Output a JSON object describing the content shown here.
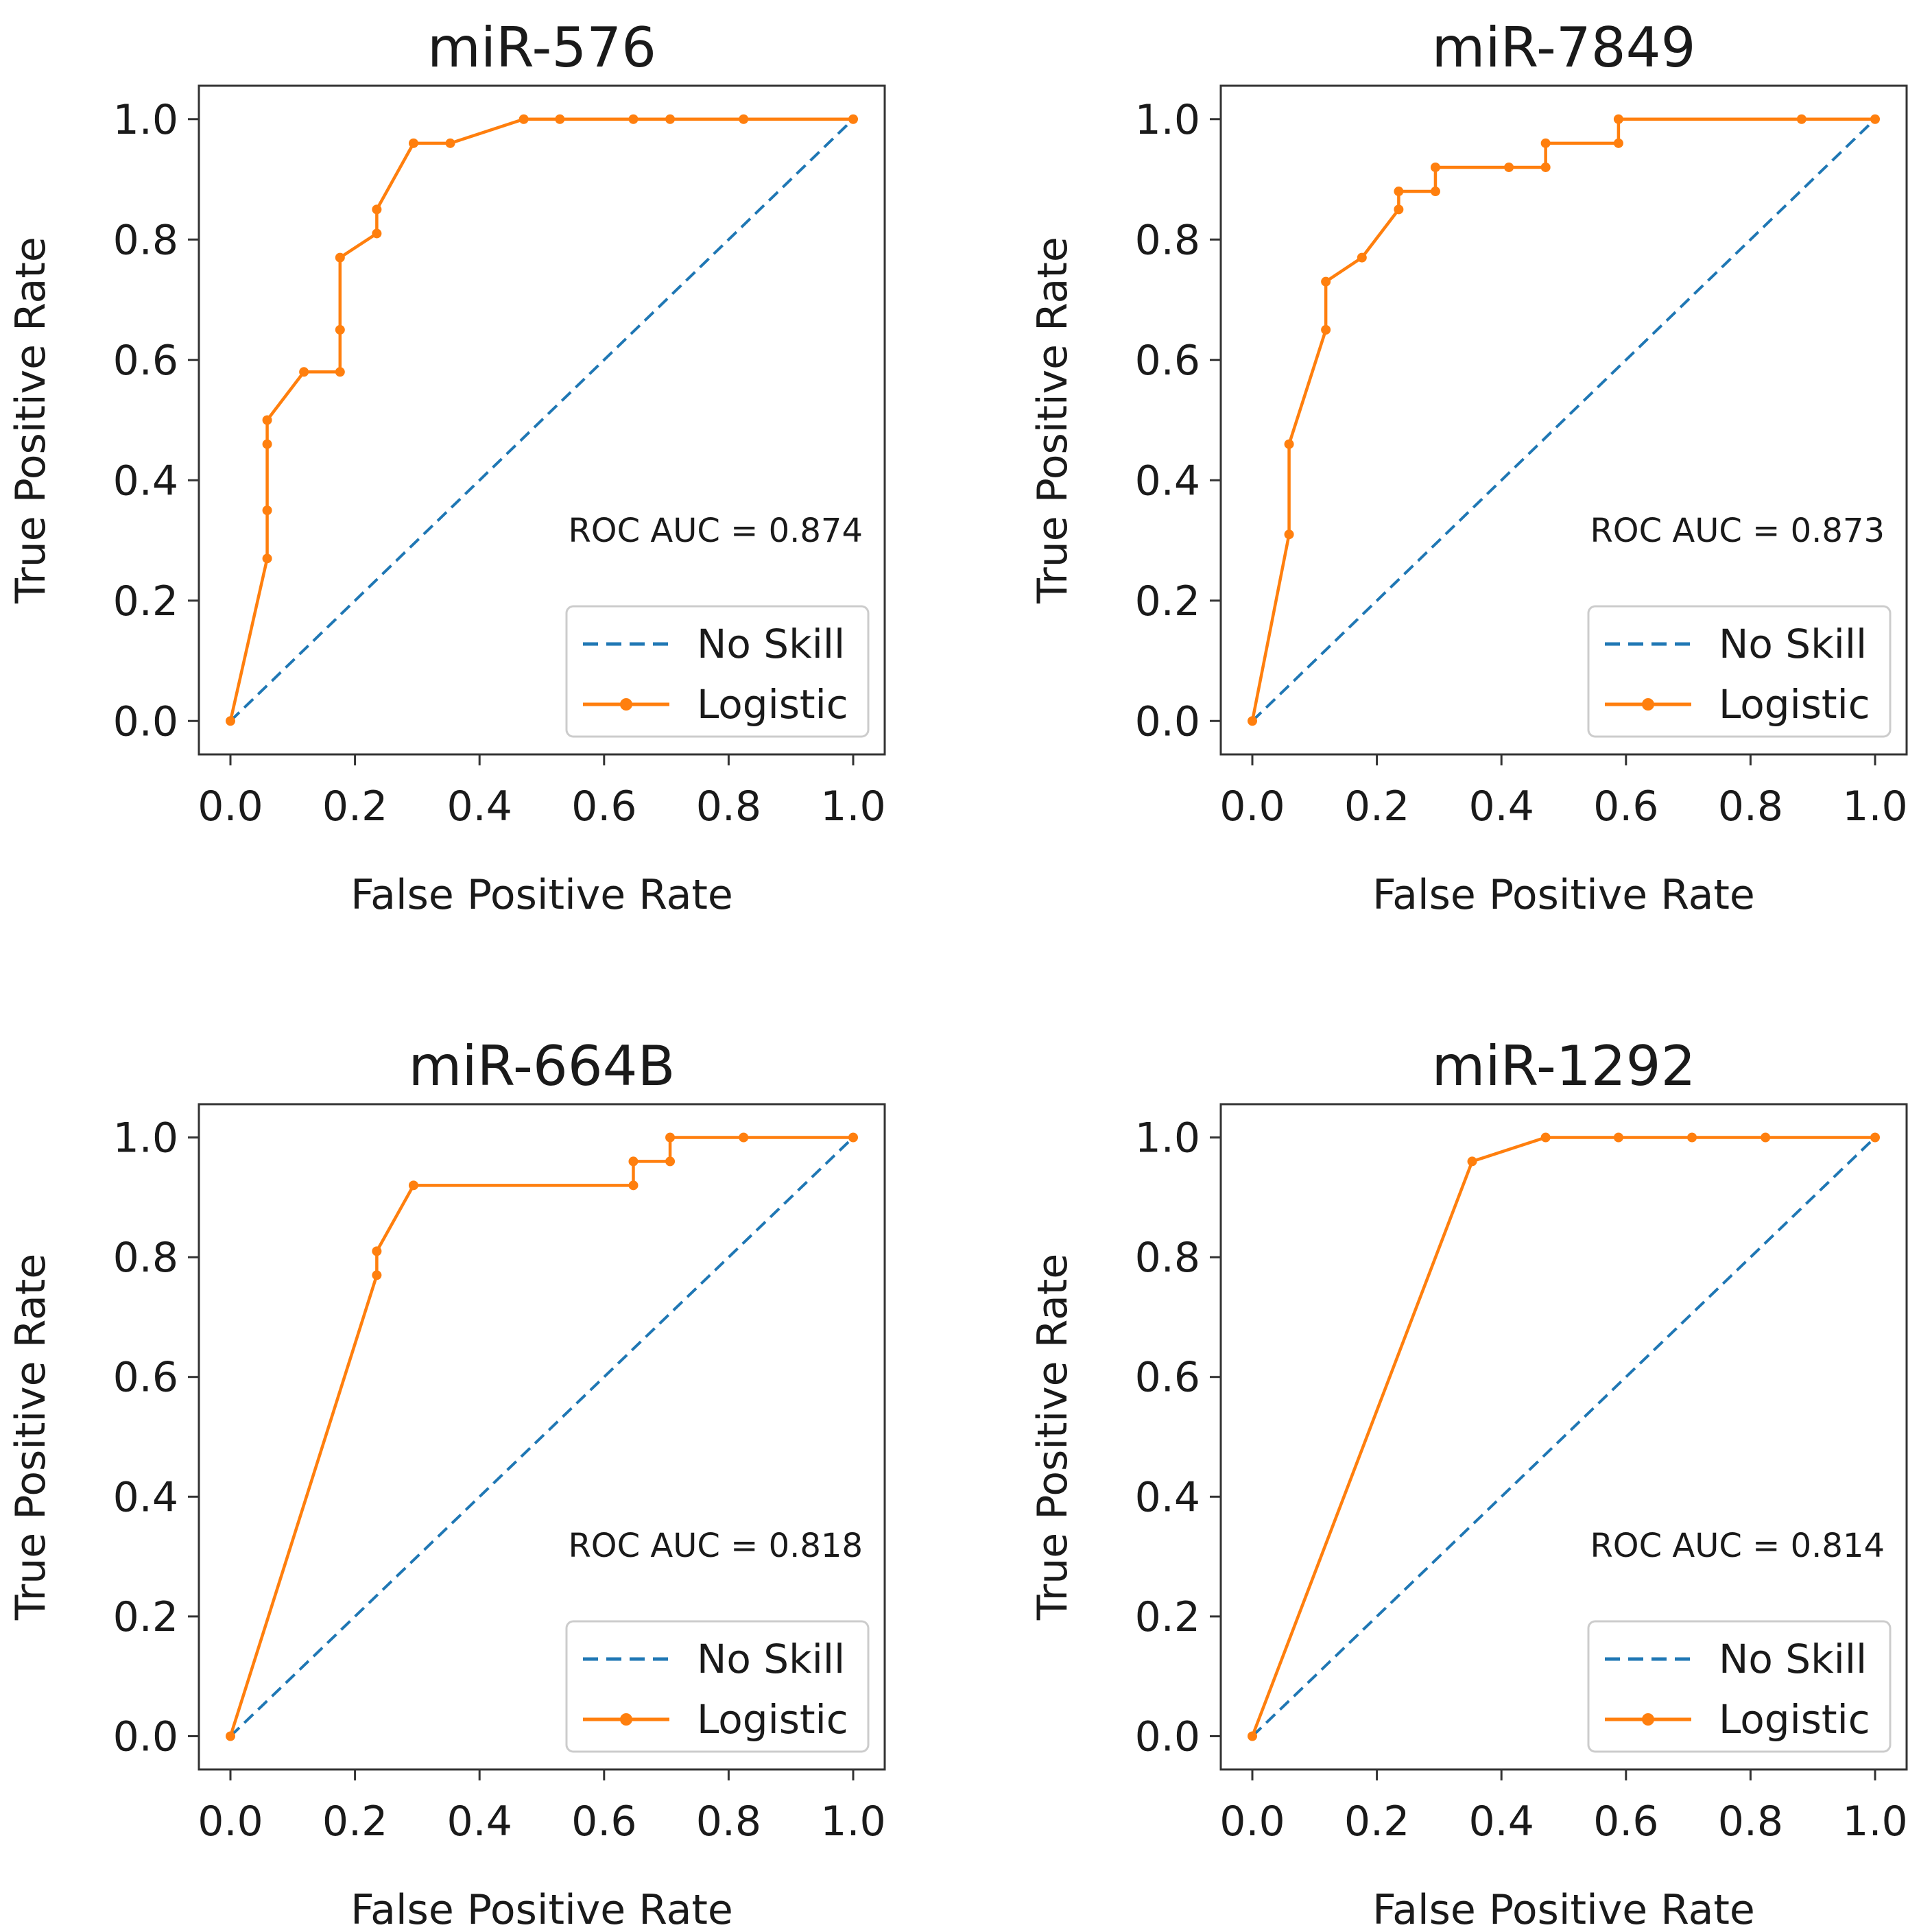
{
  "chart_data": [
    {
      "type": "line",
      "title": "miR-576",
      "xlabel": "False Positive Rate",
      "ylabel": "True Positive Rate",
      "xlim": [
        0,
        1
      ],
      "ylim": [
        0,
        1
      ],
      "xticks": [
        "0.0",
        "0.2",
        "0.4",
        "0.6",
        "0.8",
        "1.0"
      ],
      "yticks": [
        "0.0",
        "0.2",
        "0.4",
        "0.6",
        "0.8",
        "1.0"
      ],
      "annotation": "ROC AUC = 0.874",
      "legend_position": "lower-right",
      "series": [
        {
          "name": "No Skill",
          "style": "dashed",
          "color": "#1f77b4",
          "x": [
            0,
            1
          ],
          "y": [
            0,
            1
          ]
        },
        {
          "name": "Logistic",
          "style": "solid-marker",
          "color": "#ff7f0e",
          "x": [
            0,
            0.059,
            0.059,
            0.059,
            0.059,
            0.118,
            0.176,
            0.176,
            0.176,
            0.235,
            0.235,
            0.294,
            0.353,
            0.471,
            0.529,
            0.647,
            0.706,
            0.824,
            1.0
          ],
          "y": [
            0,
            0.27,
            0.35,
            0.46,
            0.5,
            0.58,
            0.58,
            0.65,
            0.77,
            0.81,
            0.85,
            0.96,
            0.96,
            1.0,
            1.0,
            1.0,
            1.0,
            1.0,
            1.0
          ]
        }
      ]
    },
    {
      "type": "line",
      "title": "miR-7849",
      "xlabel": "False Positive Rate",
      "ylabel": "True Positive Rate",
      "xlim": [
        0,
        1
      ],
      "ylim": [
        0,
        1
      ],
      "xticks": [
        "0.0",
        "0.2",
        "0.4",
        "0.6",
        "0.8",
        "1.0"
      ],
      "yticks": [
        "0.0",
        "0.2",
        "0.4",
        "0.6",
        "0.8",
        "1.0"
      ],
      "annotation": "ROC AUC = 0.873",
      "legend_position": "lower-right",
      "series": [
        {
          "name": "No Skill",
          "style": "dashed",
          "color": "#1f77b4",
          "x": [
            0,
            1
          ],
          "y": [
            0,
            1
          ]
        },
        {
          "name": "Logistic",
          "style": "solid-marker",
          "color": "#ff7f0e",
          "x": [
            0,
            0.059,
            0.059,
            0.118,
            0.118,
            0.176,
            0.235,
            0.235,
            0.294,
            0.294,
            0.412,
            0.471,
            0.471,
            0.588,
            0.588,
            0.882,
            1.0
          ],
          "y": [
            0,
            0.31,
            0.46,
            0.65,
            0.73,
            0.77,
            0.85,
            0.88,
            0.88,
            0.92,
            0.92,
            0.92,
            0.96,
            0.96,
            1.0,
            1.0,
            1.0
          ]
        }
      ]
    },
    {
      "type": "line",
      "title": "miR-664B",
      "xlabel": "False Positive Rate",
      "ylabel": "True Positive Rate",
      "xlim": [
        0,
        1
      ],
      "ylim": [
        0,
        1
      ],
      "xticks": [
        "0.0",
        "0.2",
        "0.4",
        "0.6",
        "0.8",
        "1.0"
      ],
      "yticks": [
        "0.0",
        "0.2",
        "0.4",
        "0.6",
        "0.8",
        "1.0"
      ],
      "annotation": "ROC AUC = 0.818",
      "legend_position": "lower-right",
      "series": [
        {
          "name": "No Skill",
          "style": "dashed",
          "color": "#1f77b4",
          "x": [
            0,
            1
          ],
          "y": [
            0,
            1
          ]
        },
        {
          "name": "Logistic",
          "style": "solid-marker",
          "color": "#ff7f0e",
          "x": [
            0,
            0.235,
            0.235,
            0.294,
            0.647,
            0.647,
            0.706,
            0.706,
            0.824,
            1.0
          ],
          "y": [
            0,
            0.77,
            0.81,
            0.92,
            0.92,
            0.96,
            0.96,
            1.0,
            1.0,
            1.0
          ]
        }
      ]
    },
    {
      "type": "line",
      "title": "miR-1292",
      "xlabel": "False Positive Rate",
      "ylabel": "True Positive Rate",
      "xlim": [
        0,
        1
      ],
      "ylim": [
        0,
        1
      ],
      "xticks": [
        "0.0",
        "0.2",
        "0.4",
        "0.6",
        "0.8",
        "1.0"
      ],
      "yticks": [
        "0.0",
        "0.2",
        "0.4",
        "0.6",
        "0.8",
        "1.0"
      ],
      "annotation": "ROC AUC = 0.814",
      "legend_position": "lower-right",
      "series": [
        {
          "name": "No Skill",
          "style": "dashed",
          "color": "#1f77b4",
          "x": [
            0,
            1
          ],
          "y": [
            0,
            1
          ]
        },
        {
          "name": "Logistic",
          "style": "solid-marker",
          "color": "#ff7f0e",
          "x": [
            0,
            0.353,
            0.471,
            0.588,
            0.706,
            0.824,
            1.0
          ],
          "y": [
            0,
            0.96,
            1.0,
            1.0,
            1.0,
            1.0,
            1.0
          ]
        }
      ]
    }
  ]
}
